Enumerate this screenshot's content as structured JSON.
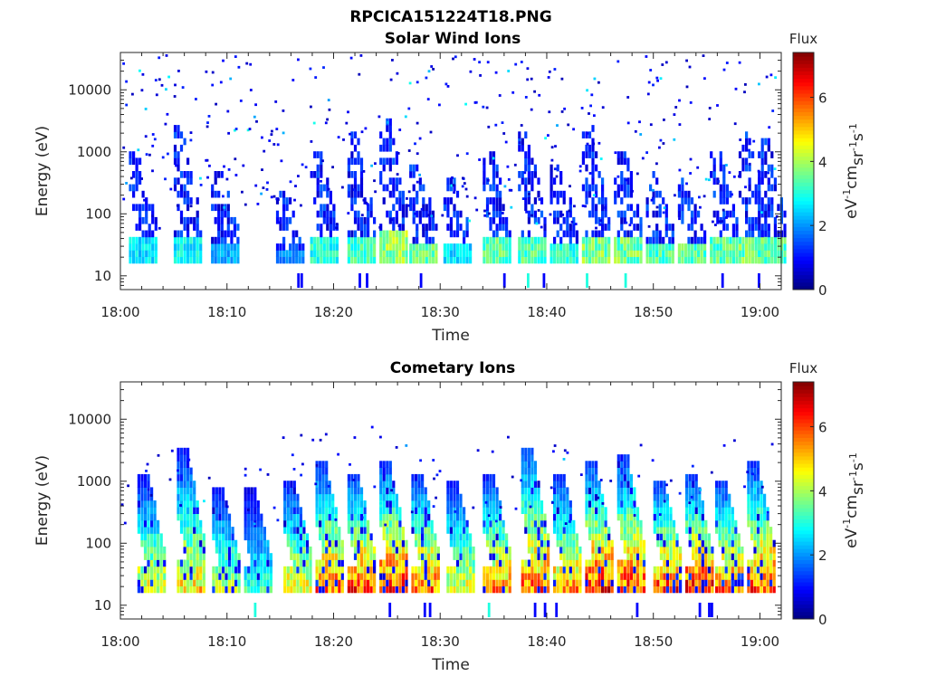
{
  "title": "RPCICA151224T18.PNG",
  "chart_data": [
    {
      "type": "heatmap",
      "title": "Solar Wind Ions",
      "xlabel": "Time",
      "ylabel": "Energy (eV)",
      "x_range": [
        "18:00",
        "19:02"
      ],
      "x_ticks": [
        "18:00",
        "18:10",
        "18:20",
        "18:30",
        "18:40",
        "18:50",
        "19:00"
      ],
      "y_scale": "log",
      "y_range": [
        6,
        40000
      ],
      "y_ticks": [
        "10",
        "100",
        "1000",
        "10000"
      ],
      "colorbar": {
        "title": "Flux",
        "label": "eV-1cm-2sr-1s-1",
        "range": [
          0,
          7.4
        ],
        "ticks": [
          "0",
          "2",
          "4",
          "6"
        ],
        "colormap": "jet"
      },
      "bursts": [
        {
          "t": 2,
          "top": 900,
          "peak": 3.0
        },
        {
          "t": 6.2,
          "top": 2000,
          "peak": 3.2
        },
        {
          "t": 9.7,
          "top": 400,
          "peak": 2.5
        },
        {
          "t": 15.8,
          "top": 200,
          "peak": 2.3
        },
        {
          "t": 19,
          "top": 900,
          "peak": 3.5
        },
        {
          "t": 22.5,
          "top": 1500,
          "peak": 3.8
        },
        {
          "t": 25.5,
          "top": 2500,
          "peak": 4.5
        },
        {
          "t": 28.3,
          "top": 500,
          "peak": 4.2
        },
        {
          "t": 31.5,
          "top": 300,
          "peak": 3.0
        },
        {
          "t": 35.2,
          "top": 800,
          "peak": 4.0
        },
        {
          "t": 38.5,
          "top": 1500,
          "peak": 3.9
        },
        {
          "t": 41.5,
          "top": 500,
          "peak": 3.6
        },
        {
          "t": 44.5,
          "top": 2000,
          "peak": 4.3
        },
        {
          "t": 47.5,
          "top": 1000,
          "peak": 4.2
        },
        {
          "t": 50.5,
          "top": 400,
          "peak": 3.9
        },
        {
          "t": 53.5,
          "top": 300,
          "peak": 4.0
        },
        {
          "t": 56.5,
          "top": 800,
          "peak": 4.0
        },
        {
          "t": 59.2,
          "top": 1500,
          "peak": 4.2
        },
        {
          "t": 61,
          "top": 1200,
          "peak": 4.0
        }
      ]
    },
    {
      "type": "heatmap",
      "title": "Cometary Ions",
      "xlabel": "Time",
      "ylabel": "Energy (eV)",
      "x_range": [
        "18:00",
        "19:02"
      ],
      "x_ticks": [
        "18:00",
        "18:10",
        "18:20",
        "18:30",
        "18:40",
        "18:50",
        "19:00"
      ],
      "y_scale": "log",
      "y_range": [
        6,
        40000
      ],
      "y_ticks": [
        "10",
        "100",
        "1000",
        "10000"
      ],
      "colorbar": {
        "title": "Flux",
        "label": "eV-1cm-2sr-1s-1",
        "range": [
          0,
          7.4
        ],
        "ticks": [
          "0",
          "2",
          "4",
          "6"
        ],
        "colormap": "jet"
      },
      "bursts": [
        {
          "t": 2.8,
          "top": 1000,
          "peak": 5.0
        },
        {
          "t": 6.5,
          "top": 2500,
          "peak": 5.3
        },
        {
          "t": 9.8,
          "top": 700,
          "peak": 4.5
        },
        {
          "t": 12.8,
          "top": 600,
          "peak": 3.5
        },
        {
          "t": 16.5,
          "top": 800,
          "peak": 5.2
        },
        {
          "t": 19.5,
          "top": 1500,
          "peak": 6.2
        },
        {
          "t": 22.5,
          "top": 1000,
          "peak": 6.5
        },
        {
          "t": 25.5,
          "top": 1500,
          "peak": 6.8
        },
        {
          "t": 28.5,
          "top": 1000,
          "peak": 6.2
        },
        {
          "t": 31.8,
          "top": 800,
          "peak": 5.0
        },
        {
          "t": 35.2,
          "top": 1000,
          "peak": 5.8
        },
        {
          "t": 38.8,
          "top": 3000,
          "peak": 6.2
        },
        {
          "t": 41.8,
          "top": 1000,
          "peak": 5.8
        },
        {
          "t": 44.8,
          "top": 1500,
          "peak": 6.8
        },
        {
          "t": 47.8,
          "top": 2000,
          "peak": 6.5
        },
        {
          "t": 51.2,
          "top": 800,
          "peak": 6.5
        },
        {
          "t": 54.2,
          "top": 1000,
          "peak": 6.8
        },
        {
          "t": 57,
          "top": 800,
          "peak": 6.2
        },
        {
          "t": 60,
          "top": 1500,
          "peak": 6.5
        }
      ]
    }
  ]
}
